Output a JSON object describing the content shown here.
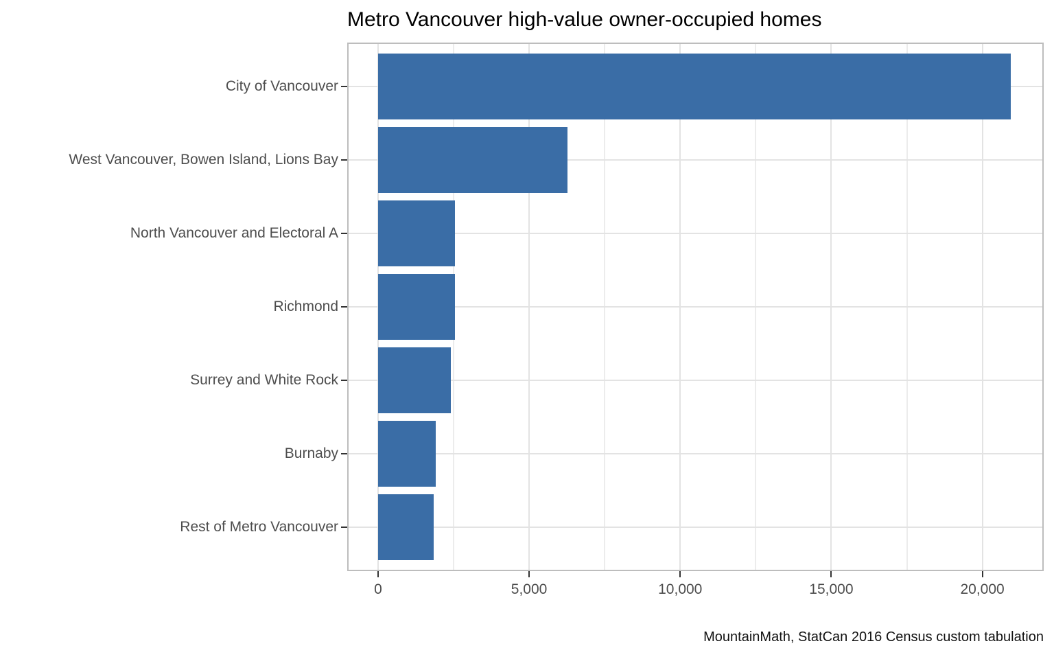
{
  "figure": {
    "title": "Metro Vancouver high-value owner-occupied homes",
    "caption": "MountainMath, StatCan 2016 Census custom tabulation"
  },
  "colors": {
    "bar": "#3a6da6",
    "grid_major": "#e3e3e3",
    "grid_minor": "#ececec",
    "panel_border": "#bdbdbd",
    "axis_text": "#4d4d4d",
    "tick_mark": "#333333",
    "title_text": "#000000",
    "background": "#ffffff"
  },
  "chart_data": {
    "type": "bar",
    "orientation": "horizontal",
    "title": "Metro Vancouver high-value owner-occupied homes",
    "caption": "MountainMath, StatCan 2016 Census custom tabulation",
    "xlabel": "",
    "ylabel": "",
    "categories": [
      "City of Vancouver",
      "West Vancouver, Bowen Island, Lions Bay",
      "North Vancouver and Electoral A",
      "Richmond",
      "Surrey and White Rock",
      "Burnaby",
      "Rest of Metro Vancouver"
    ],
    "values": [
      20950,
      6260,
      2550,
      2550,
      2410,
      1920,
      1840
    ],
    "x_tick_values": [
      0,
      5000,
      10000,
      15000,
      20000
    ],
    "x_tick_labels": [
      "0",
      "5,000",
      "10,000",
      "15,000",
      "20,000"
    ],
    "x_minor_tick_values": [
      2500,
      7500,
      12500,
      17500
    ],
    "xlim": [
      -1020,
      22030
    ],
    "bar_color": "#3a6da6",
    "grid": true,
    "legend": false
  }
}
